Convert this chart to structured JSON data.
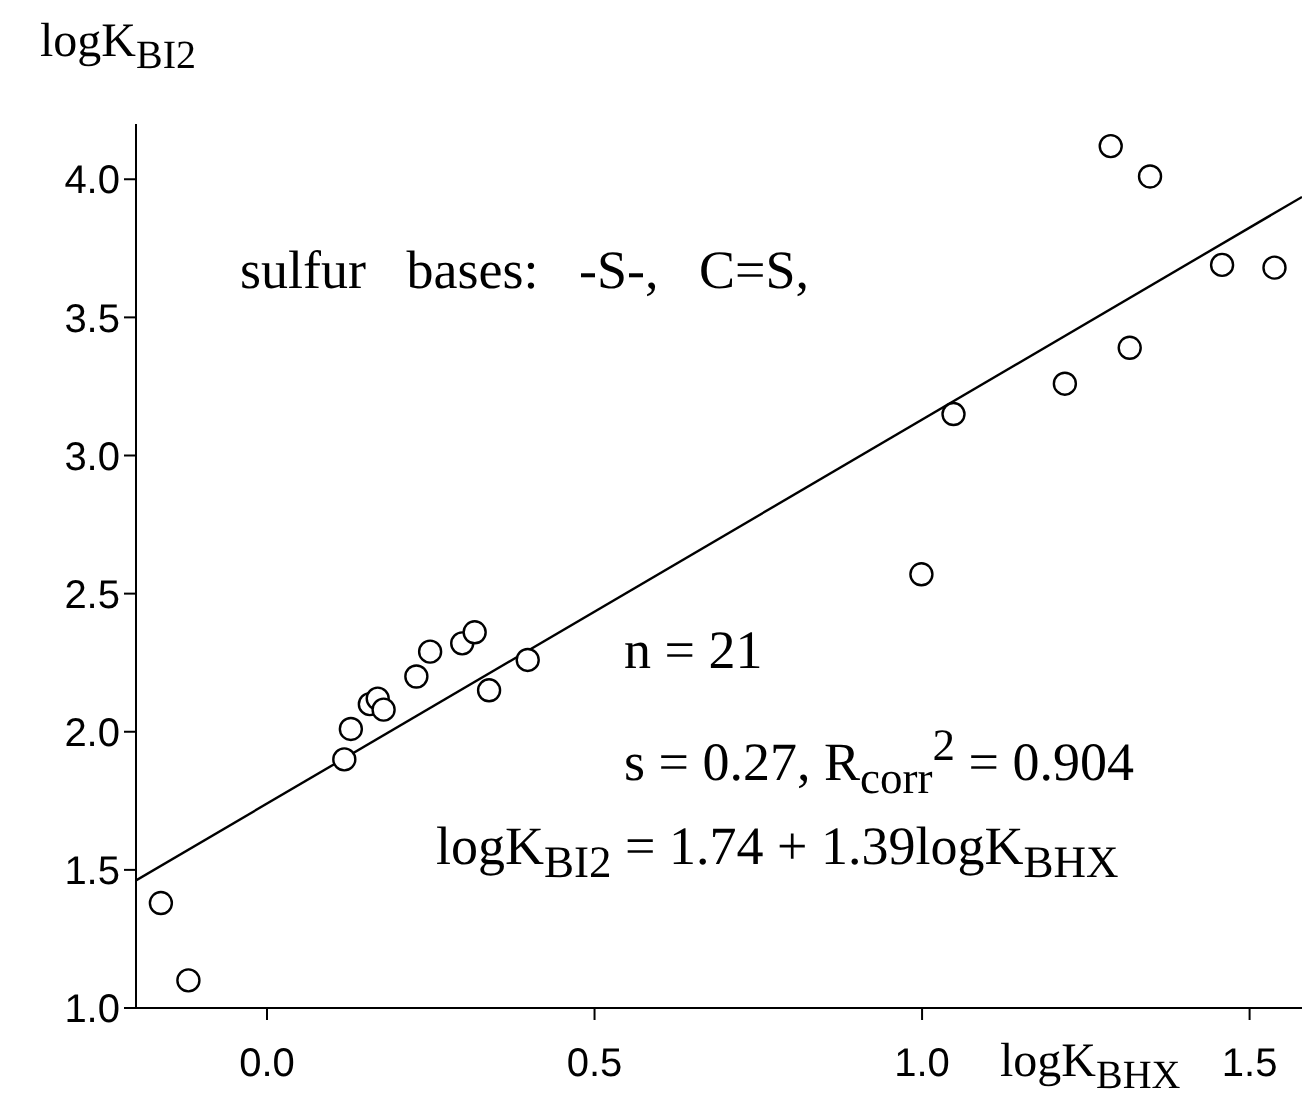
{
  "chart_data": {
    "type": "scatter",
    "xlabel": "logK$_{BHX}$",
    "ylabel": "logK$_{BI2}$",
    "xlim": [
      -0.2,
      1.58
    ],
    "ylim": [
      1.0,
      4.2
    ],
    "xticks": [
      {
        "value": 0,
        "label": "0.0"
      },
      0.5,
      {
        "value": 1,
        "label": "1.0"
      },
      1.5
    ],
    "yticks": [
      {
        "value": 1,
        "label": "1.0"
      },
      1.5,
      {
        "value": 2,
        "label": "2.0"
      },
      2.5,
      {
        "value": 3,
        "label": "3.0"
      },
      3.5,
      {
        "value": 4,
        "label": "4.0"
      }
    ],
    "grid": false,
    "marker": "circle",
    "series": [
      {
        "color": "#000000",
        "x": [
          -0.162,
          -0.12,
          0.118,
          0.128,
          0.157,
          0.169,
          0.178,
          0.228,
          0.249,
          0.298,
          0.317,
          0.339,
          0.398,
          0.999,
          1.048,
          1.218,
          1.288,
          1.317,
          1.348,
          1.458,
          1.538
        ],
        "values": [
          1.38,
          1.1,
          1.9,
          2.01,
          2.1,
          2.12,
          2.08,
          2.2,
          2.29,
          2.32,
          2.36,
          2.15,
          2.26,
          2.57,
          3.15,
          3.26,
          4.12,
          3.39,
          4.01,
          3.69,
          3.68
        ]
      },
      {
        "type": "line",
        "color": "#000000",
        "marker": "none",
        "x": [
          -0.2,
          1.58
        ],
        "values": [
          1.462,
          3.936
        ]
      }
    ],
    "annotations": [
      "sulfur   bases:   -S-,   C=S,",
      "n = 21",
      "s = 0.27, R$_{corr}$$^{2}$ = 0.904",
      "logK$_{BI2}$ = 1.74 + 1.39logK$_{BHX}$"
    ]
  }
}
